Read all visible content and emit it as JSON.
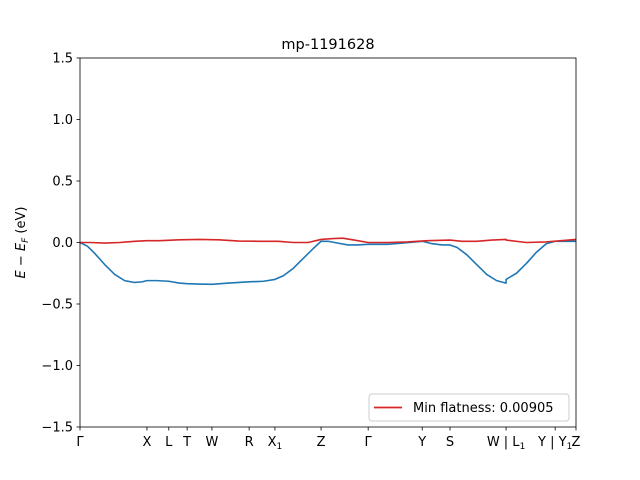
{
  "chart_data": {
    "type": "line",
    "title": "mp-1191628",
    "ylabel_parts": {
      "base": "E − E",
      "sub": "F",
      "unit": " (eV)"
    },
    "xlabel": "",
    "ylim": [
      -1.5,
      1.5
    ],
    "xlim": [
      0,
      1
    ],
    "yticks": [
      -1.5,
      -1.0,
      -0.5,
      0.0,
      0.5,
      1.0,
      1.5
    ],
    "ytick_labels": [
      "−1.5",
      "−1.0",
      "−0.5",
      "0.0",
      "0.5",
      "1.0",
      "1.5"
    ],
    "xticks": [
      {
        "pos": 0.0,
        "main": "Γ",
        "sub": ""
      },
      {
        "pos": 0.135,
        "main": "X",
        "sub": ""
      },
      {
        "pos": 0.179,
        "main": "L",
        "sub": ""
      },
      {
        "pos": 0.216,
        "main": "T",
        "sub": ""
      },
      {
        "pos": 0.266,
        "main": "W",
        "sub": ""
      },
      {
        "pos": 0.341,
        "main": "R",
        "sub": ""
      },
      {
        "pos": 0.393,
        "main": "X",
        "sub": "1"
      },
      {
        "pos": 0.486,
        "main": "Z",
        "sub": ""
      },
      {
        "pos": 0.581,
        "main": "Γ",
        "sub": ""
      },
      {
        "pos": 0.69,
        "main": "Y",
        "sub": ""
      },
      {
        "pos": 0.746,
        "main": "S",
        "sub": ""
      },
      {
        "pos": 0.859,
        "main": "W | L",
        "sub": "1"
      },
      {
        "pos": 0.958,
        "main": "Y | Y",
        "sub": "1"
      },
      {
        "pos": 1.0,
        "main": "Z",
        "sub": ""
      }
    ],
    "series": [
      {
        "name": "",
        "color": "#1f77b4",
        "points": [
          [
            0.0,
            0.0
          ],
          [
            0.015,
            -0.03
          ],
          [
            0.03,
            -0.09
          ],
          [
            0.05,
            -0.18
          ],
          [
            0.07,
            -0.26
          ],
          [
            0.09,
            -0.31
          ],
          [
            0.11,
            -0.325
          ],
          [
            0.125,
            -0.32
          ],
          [
            0.135,
            -0.31
          ],
          [
            0.155,
            -0.31
          ],
          [
            0.179,
            -0.315
          ],
          [
            0.2,
            -0.33
          ],
          [
            0.216,
            -0.335
          ],
          [
            0.24,
            -0.338
          ],
          [
            0.266,
            -0.34
          ],
          [
            0.3,
            -0.33
          ],
          [
            0.341,
            -0.32
          ],
          [
            0.37,
            -0.315
          ],
          [
            0.393,
            -0.3
          ],
          [
            0.41,
            -0.27
          ],
          [
            0.43,
            -0.21
          ],
          [
            0.45,
            -0.13
          ],
          [
            0.47,
            -0.05
          ],
          [
            0.486,
            0.01
          ],
          [
            0.5,
            0.01
          ],
          [
            0.52,
            -0.005
          ],
          [
            0.54,
            -0.02
          ],
          [
            0.56,
            -0.02
          ],
          [
            0.581,
            -0.015
          ],
          [
            0.62,
            -0.015
          ],
          [
            0.65,
            -0.005
          ],
          [
            0.69,
            0.01
          ],
          [
            0.71,
            -0.01
          ],
          [
            0.73,
            -0.02
          ],
          [
            0.746,
            -0.02
          ],
          [
            0.76,
            -0.04
          ],
          [
            0.78,
            -0.1
          ],
          [
            0.8,
            -0.18
          ],
          [
            0.82,
            -0.26
          ],
          [
            0.84,
            -0.31
          ],
          [
            0.859,
            -0.33
          ],
          [
            0.859,
            -0.3
          ],
          [
            0.88,
            -0.25
          ],
          [
            0.9,
            -0.17
          ],
          [
            0.92,
            -0.08
          ],
          [
            0.94,
            -0.01
          ],
          [
            0.958,
            0.01
          ],
          [
            0.98,
            0.01
          ],
          [
            1.0,
            0.01
          ]
        ]
      },
      {
        "name": "Min flatness: 0.00905",
        "color": "#d62728",
        "points": [
          [
            0.0,
            0.0
          ],
          [
            0.02,
            0.0
          ],
          [
            0.05,
            -0.005
          ],
          [
            0.08,
            0.0
          ],
          [
            0.11,
            0.01
          ],
          [
            0.135,
            0.015
          ],
          [
            0.16,
            0.015
          ],
          [
            0.2,
            0.022
          ],
          [
            0.24,
            0.025
          ],
          [
            0.28,
            0.022
          ],
          [
            0.32,
            0.012
          ],
          [
            0.36,
            0.01
          ],
          [
            0.4,
            0.01
          ],
          [
            0.43,
            0.0
          ],
          [
            0.46,
            0.0
          ],
          [
            0.486,
            0.025
          ],
          [
            0.51,
            0.032
          ],
          [
            0.53,
            0.035
          ],
          [
            0.55,
            0.022
          ],
          [
            0.581,
            0.0
          ],
          [
            0.62,
            0.0
          ],
          [
            0.66,
            0.005
          ],
          [
            0.7,
            0.015
          ],
          [
            0.746,
            0.02
          ],
          [
            0.77,
            0.01
          ],
          [
            0.8,
            0.01
          ],
          [
            0.83,
            0.02
          ],
          [
            0.859,
            0.025
          ],
          [
            0.859,
            0.02
          ],
          [
            0.9,
            0.0
          ],
          [
            0.94,
            0.005
          ],
          [
            0.97,
            0.015
          ],
          [
            1.0,
            0.025
          ]
        ]
      }
    ],
    "legend": {
      "placement": "lower-right",
      "entry": "Min flatness: 0.00905",
      "color": "#d62728"
    },
    "grid": false
  }
}
